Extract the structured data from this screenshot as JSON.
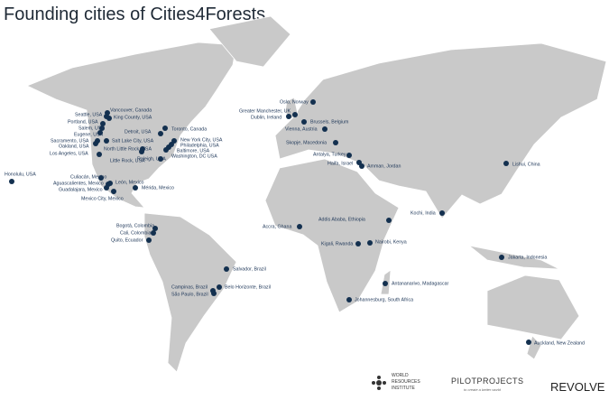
{
  "title": "Founding cities of Cities4Forests",
  "cities": [
    "Oslo, Norway",
    "Greater Manchester, UK",
    "Dublin, Ireland",
    "Brussels, Belgium",
    "Vienna, Austria",
    "Skopje, Macedonia",
    "Antalya, Turkey",
    "Haifa, Israel",
    "Amman, Jordan",
    "Lishui, China",
    "Kochi, India",
    "Addis Ababa, Ethiopia",
    "Accra, Ghana",
    "Kigali, Rwanda",
    "Nairobi, Kenya",
    "Jakarta, Indonesia",
    "Salvador, Brazil",
    "Antananarivo, Madagascar",
    "Campinas, Brazil",
    "Belo Horizonte, Brazil",
    "São Paulo, Brazil",
    "Johannesburg, South Africa",
    "Auckland, New Zealand",
    "Honolulu, USA",
    "Seattle, USA",
    "Vancouver, Canada",
    "King County, USA",
    "Portland, USA",
    "Salem, USA",
    "Eugene, USA",
    "Sacramento, USA",
    "Oakland, USA",
    "Salt Lake City, USA",
    "Los Angeles, USA",
    "Detroit, USA",
    "Toronto, Canada",
    "North Little Rock, USA",
    "Little Rock, USA",
    "Raleigh, USA",
    "New York City, USA",
    "Philadelphia, USA",
    "Baltimore, USA",
    "Washington, DC USA",
    "Culiacán, Mexico",
    "Aguascalientes, Mexico",
    "León, Mexico",
    "Guadalajara, Mexico",
    "Mexico City, Mexico",
    "Mérida, Mexico",
    "Bogotá, Colombia",
    "Cali, Colombia",
    "Quito, Ecuador"
  ],
  "logos": {
    "wri": [
      "WORLD",
      "RESOURCES",
      "INSTITUTE"
    ],
    "pilot": "PILOTPROJECTS",
    "pilot_tagline": "to create a better world",
    "revolve": "REVOLVE"
  }
}
